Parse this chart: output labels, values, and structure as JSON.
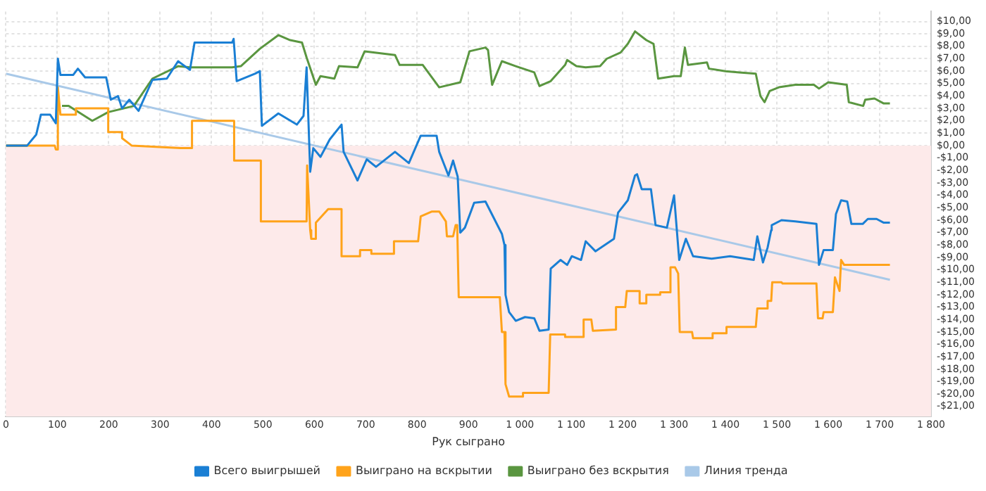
{
  "chart_data": {
    "type": "line",
    "xlabel": "Рук сыграно",
    "legend": "bottom",
    "grid": true,
    "marker": "none",
    "line_style": "solid",
    "xlim": [
      0,
      1800
    ],
    "xticks": [
      0,
      100,
      200,
      300,
      400,
      500,
      600,
      700,
      800,
      900,
      {
        "value": 1000,
        "label": "1 000"
      },
      {
        "value": 1100,
        "label": "1 100"
      },
      {
        "value": 1200,
        "label": "1 200"
      },
      {
        "value": 1300,
        "label": "1 300"
      },
      {
        "value": 1400,
        "label": "1 400"
      },
      {
        "value": 1500,
        "label": "1 500"
      },
      {
        "value": 1600,
        "label": "1 600"
      },
      {
        "value": 1700,
        "label": "1 700"
      },
      {
        "value": 1800,
        "label": "1 800"
      }
    ],
    "ylim": [
      -21.8,
      10.8
    ],
    "yticks": [
      {
        "value": 10,
        "label": "$10,00"
      },
      {
        "value": 9,
        "label": "$9,00"
      },
      {
        "value": 8,
        "label": "$8,00"
      },
      {
        "value": 7,
        "label": "$7,00"
      },
      {
        "value": 6,
        "label": "$6,00"
      },
      {
        "value": 5,
        "label": "$5,00"
      },
      {
        "value": 4,
        "label": "$4,00"
      },
      {
        "value": 3,
        "label": "$3,00"
      },
      {
        "value": 2,
        "label": "$2,00"
      },
      {
        "value": 1,
        "label": "$1,00"
      },
      {
        "value": 0,
        "label": "$0,00"
      },
      {
        "value": -1,
        "label": "-$1,00"
      },
      {
        "value": -2,
        "label": "-$2,00"
      },
      {
        "value": -3,
        "label": "-$3,00"
      },
      {
        "value": -4,
        "label": "-$4,00"
      },
      {
        "value": -5,
        "label": "-$5,00"
      },
      {
        "value": -6,
        "label": "-$6,00"
      },
      {
        "value": -7,
        "label": "-$7,00"
      },
      {
        "value": -8,
        "label": "-$8,00"
      },
      {
        "value": -9,
        "label": "-$9,00"
      },
      {
        "value": -10,
        "label": "-$10,00"
      },
      {
        "value": -11,
        "label": "-$11,00"
      },
      {
        "value": -12,
        "label": "-$12,00"
      },
      {
        "value": -13,
        "label": "-$13,00"
      },
      {
        "value": -14,
        "label": "-$14,00"
      },
      {
        "value": -15,
        "label": "-$15,00"
      },
      {
        "value": -16,
        "label": "-$16,00"
      },
      {
        "value": -17,
        "label": "-$17,00"
      },
      {
        "value": -18,
        "label": "-$18,00"
      },
      {
        "value": -19,
        "label": "-$19,00"
      },
      {
        "value": -20,
        "label": "-$20,00"
      },
      {
        "value": -21,
        "label": "-$21,00"
      }
    ],
    "bands": [
      {
        "axis": "y",
        "from": -21.8,
        "to": 0,
        "color": "#fdeaea"
      }
    ],
    "series": [
      {
        "name": "Всего выигрышей",
        "color": "#1a7fd4",
        "x": [
          0,
          41,
          59,
          68,
          86,
          97,
          101,
          106,
          131,
          140,
          154,
          195,
          204,
          218,
          226,
          240,
          258,
          285,
          313,
          335,
          358,
          367,
          440,
          443,
          449,
          485,
          494,
          498,
          530,
          566,
          579,
          585,
          592,
          598,
          612,
          630,
          653,
          657,
          684,
          702,
          720,
          757,
          784,
          807,
          838,
          843,
          861,
          870,
          879,
          884,
          893,
          911,
          933,
          965,
          970,
          972,
          979,
          992,
          1010,
          1028,
          1038,
          1056,
          1060,
          1079,
          1092,
          1101,
          1119,
          1128,
          1147,
          1183,
          1191,
          1210,
          1224,
          1228,
          1237,
          1255,
          1264,
          1286,
          1300,
          1310,
          1323,
          1337,
          1373,
          1409,
          1455,
          1462,
          1473,
          1482,
          1489,
          1490,
          1509,
          1536,
          1577,
          1582,
          1591,
          1609,
          1615,
          1625,
          1637,
          1645,
          1667,
          1677,
          1694,
          1708,
          1720
        ],
        "values": [
          0,
          0,
          0.9,
          2.5,
          2.5,
          1.8,
          7.0,
          5.7,
          5.7,
          6.2,
          5.5,
          5.5,
          3.7,
          4.0,
          3.0,
          3.7,
          2.8,
          5.3,
          5.4,
          6.8,
          6.1,
          8.3,
          8.3,
          8.6,
          5.2,
          5.8,
          6.0,
          1.6,
          2.6,
          1.7,
          2.4,
          6.3,
          -2.1,
          -0.2,
          -0.9,
          0.5,
          1.7,
          -0.5,
          -2.8,
          -1.1,
          -1.7,
          -0.5,
          -1.4,
          0.8,
          0.8,
          -0.5,
          -2.4,
          -1.2,
          -2.5,
          -7.0,
          -6.6,
          -4.6,
          -4.5,
          -7.1,
          -8.0,
          -12.0,
          -13.4,
          -14.1,
          -13.8,
          -13.9,
          -14.9,
          -14.8,
          -9.9,
          -9.2,
          -9.6,
          -8.9,
          -9.2,
          -7.7,
          -8.5,
          -7.5,
          -5.4,
          -4.4,
          -2.4,
          -2.3,
          -3.5,
          -3.5,
          -6.4,
          -6.6,
          -4.0,
          -9.2,
          -7.5,
          -8.9,
          -9.1,
          -8.9,
          -9.2,
          -7.3,
          -9.4,
          -8.2,
          -6.8,
          -6.4,
          -6.0,
          -6.1,
          -6.3,
          -9.6,
          -8.4,
          -8.4,
          -5.5,
          -4.4,
          -4.5,
          -6.3,
          -6.3,
          -5.9,
          -5.9,
          -6.2,
          -6.2
        ]
      },
      {
        "name": "Выиграно на вскрытии",
        "color": "#ffa31a",
        "x": [
          0,
          95,
          97,
          101,
          101,
          106,
          136,
          136,
          199,
          199,
          226,
          226,
          245,
          340,
          362,
          362,
          444,
          444,
          496,
          496,
          585,
          586,
          592,
          594,
          603,
          603,
          627,
          653,
          653,
          689,
          689,
          711,
          711,
          755,
          755,
          802,
          807,
          829,
          843,
          856,
          858,
          870,
          875,
          878,
          881,
          961,
          965,
          970,
          972,
          979,
          1006,
          1006,
          1056,
          1059,
          1088,
          1088,
          1124,
          1124,
          1139,
          1142,
          1187,
          1187,
          1205,
          1208,
          1233,
          1233,
          1246,
          1246,
          1273,
          1273,
          1293,
          1293,
          1302,
          1308,
          1311,
          1335,
          1337,
          1373,
          1375,
          1400,
          1402,
          1459,
          1462,
          1480,
          1482,
          1489,
          1491,
          1509,
          1511,
          1577,
          1580,
          1589,
          1591,
          1609,
          1613,
          1622,
          1625,
          1631,
          1708,
          1720
        ],
        "values": [
          0,
          0,
          -0.3,
          -0.3,
          4.7,
          2.5,
          2.5,
          3.0,
          3.0,
          1.1,
          1.1,
          0.6,
          0.0,
          -0.2,
          -0.2,
          2.0,
          2.0,
          -1.2,
          -1.2,
          -6.1,
          -6.1,
          -1.6,
          -6.8,
          -7.5,
          -7.5,
          -6.2,
          -5.1,
          -5.1,
          -8.9,
          -8.9,
          -8.4,
          -8.4,
          -8.7,
          -8.7,
          -7.7,
          -7.7,
          -5.7,
          -5.3,
          -5.3,
          -6.1,
          -7.3,
          -7.3,
          -6.4,
          -6.4,
          -12.2,
          -12.2,
          -15.0,
          -15.0,
          -19.2,
          -20.2,
          -20.2,
          -19.9,
          -19.9,
          -15.2,
          -15.2,
          -15.4,
          -15.4,
          -14.0,
          -14.0,
          -14.9,
          -14.8,
          -13.0,
          -13.0,
          -11.7,
          -11.7,
          -12.7,
          -12.7,
          -12.0,
          -12.0,
          -11.8,
          -11.8,
          -9.8,
          -9.8,
          -10.3,
          -15.0,
          -15.0,
          -15.5,
          -15.5,
          -15.1,
          -15.1,
          -14.6,
          -14.6,
          -13.1,
          -13.1,
          -12.5,
          -12.5,
          -11.0,
          -11.0,
          -11.1,
          -11.1,
          -13.9,
          -13.9,
          -13.4,
          -13.4,
          -10.6,
          -11.7,
          -9.2,
          -9.6,
          -9.6,
          -9.6
        ]
      },
      {
        "name": "Выиграно без вскрытия",
        "color": "#5a9640",
        "x": [
          0,
          41,
          59,
          68,
          86,
          97,
          109,
          122,
          168,
          199,
          249,
          285,
          335,
          358,
          440,
          457,
          494,
          530,
          553,
          576,
          585,
          603,
          612,
          639,
          648,
          684,
          698,
          757,
          766,
          811,
          843,
          884,
          902,
          933,
          938,
          946,
          965,
          992,
          1028,
          1038,
          1060,
          1088,
          1092,
          1110,
          1128,
          1156,
          1169,
          1196,
          1210,
          1224,
          1246,
          1260,
          1269,
          1300,
          1313,
          1321,
          1327,
          1364,
          1368,
          1400,
          1427,
          1459,
          1468,
          1476,
          1486,
          1504,
          1536,
          1572,
          1582,
          1600,
          1636,
          1640,
          1668,
          1672,
          1690,
          1708,
          1720
        ],
        "values": [
          0,
          0,
          null,
          null,
          null,
          null,
          3.2,
          3.2,
          2.0,
          2.7,
          3.2,
          5.4,
          6.4,
          6.3,
          6.3,
          6.4,
          7.8,
          8.9,
          8.5,
          8.3,
          7.1,
          4.9,
          5.6,
          5.4,
          6.4,
          6.3,
          7.6,
          7.3,
          6.5,
          6.5,
          4.7,
          5.1,
          7.6,
          7.9,
          7.7,
          4.9,
          6.8,
          6.4,
          5.9,
          4.8,
          5.2,
          6.5,
          6.9,
          6.4,
          6.3,
          6.4,
          7.0,
          7.5,
          8.2,
          9.2,
          8.5,
          8.2,
          5.4,
          5.6,
          5.6,
          7.9,
          6.5,
          6.7,
          6.2,
          6.0,
          5.9,
          5.8,
          4.0,
          3.5,
          4.4,
          4.7,
          4.9,
          4.9,
          4.6,
          5.1,
          4.9,
          3.5,
          3.2,
          3.7,
          3.8,
          3.4,
          3.4
        ]
      },
      {
        "name": "Линия тренда",
        "color": "#a9c9e8",
        "x": [
          0,
          1720
        ],
        "values": [
          5.8,
          -10.8
        ]
      }
    ]
  }
}
